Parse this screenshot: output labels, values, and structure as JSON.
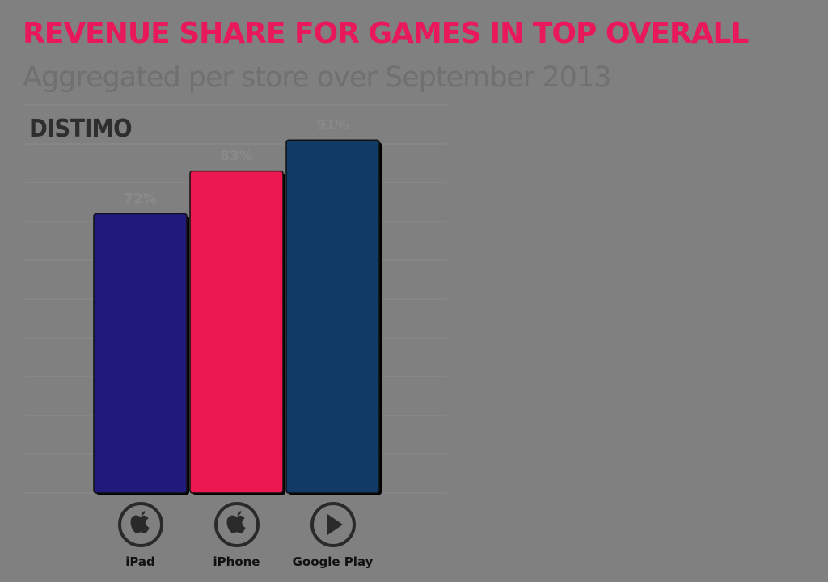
{
  "colors": {
    "background": "#808080",
    "title": "#e8185a",
    "subtitle": "#707070",
    "gridline": "#8c8c8c",
    "value_label": "#8a8a8a",
    "ipad_bar": "#201a7c",
    "iphone_bar": "#ec1850",
    "google_play_bar": "#113a66"
  },
  "header": {
    "title": "REVENUE SHARE FOR GAMES IN TOP OVERALL",
    "subtitle": "Aggregated per store over September 2013"
  },
  "brand": {
    "logo_text": "DISTIMO"
  },
  "stores": [
    {
      "name": "iPad",
      "icon": "apple-logo-icon"
    },
    {
      "name": "iPhone",
      "icon": "apple-logo-icon"
    },
    {
      "name": "Google Play",
      "icon": "google-play-icon"
    }
  ],
  "chart_data": {
    "type": "bar",
    "title": "REVENUE SHARE FOR GAMES IN TOP OVERALL",
    "subtitle": "Aggregated per store over September 2013",
    "categories": [
      "iPad",
      "iPhone",
      "Google Play"
    ],
    "values": [
      72,
      83,
      91
    ],
    "value_labels": [
      "72%",
      "83%",
      "91%"
    ],
    "colors": [
      "#201a7c",
      "#ec1850",
      "#113a66"
    ],
    "ylim": [
      0,
      100
    ],
    "grid": true,
    "legend": "none"
  }
}
